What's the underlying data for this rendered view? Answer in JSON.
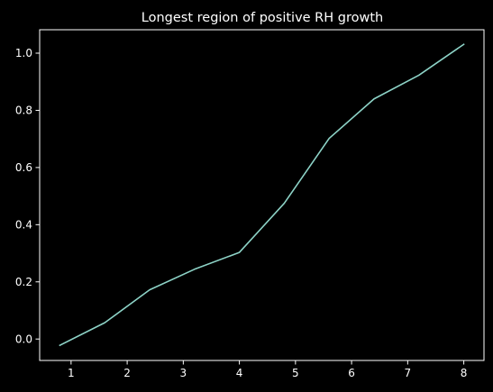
{
  "chart_data": {
    "type": "line",
    "title": "Longest region of positive RH growth",
    "xlabel": "",
    "ylabel": "",
    "xlim": [
      0.44,
      8.36
    ],
    "ylim": [
      -0.075,
      1.082
    ],
    "xticks": [
      1,
      2,
      3,
      4,
      5,
      6,
      7,
      8
    ],
    "yticks": [
      0.0,
      0.2,
      0.4,
      0.6,
      0.8,
      1.0
    ],
    "xtick_labels": [
      "1",
      "2",
      "3",
      "4",
      "5",
      "6",
      "7",
      "8"
    ],
    "ytick_labels": [
      "0.0",
      "0.2",
      "0.4",
      "0.6",
      "0.8",
      "1.0"
    ],
    "grid": false,
    "legend": "none",
    "series": [
      {
        "color": "#8dd3c7",
        "x": [
          0.8,
          1.6,
          2.4,
          3.2,
          4.0,
          4.8,
          5.6,
          6.4,
          7.2,
          8.0
        ],
        "y": [
          -0.022,
          0.057,
          0.172,
          0.244,
          0.303,
          0.475,
          0.702,
          0.84,
          0.923,
          1.031
        ]
      }
    ]
  },
  "colors": {
    "background": "#000000",
    "axes": "#ffffff",
    "text": "#ffffff"
  }
}
